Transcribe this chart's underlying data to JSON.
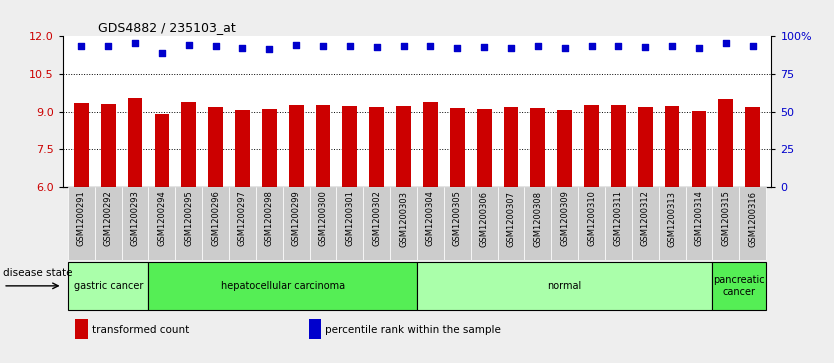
{
  "title": "GDS4882 / 235103_at",
  "samples": [
    "GSM1200291",
    "GSM1200292",
    "GSM1200293",
    "GSM1200294",
    "GSM1200295",
    "GSM1200296",
    "GSM1200297",
    "GSM1200298",
    "GSM1200299",
    "GSM1200300",
    "GSM1200301",
    "GSM1200302",
    "GSM1200303",
    "GSM1200304",
    "GSM1200305",
    "GSM1200306",
    "GSM1200307",
    "GSM1200308",
    "GSM1200309",
    "GSM1200310",
    "GSM1200311",
    "GSM1200312",
    "GSM1200313",
    "GSM1200314",
    "GSM1200315",
    "GSM1200316"
  ],
  "bar_values": [
    9.35,
    9.32,
    9.55,
    8.92,
    9.38,
    9.18,
    9.08,
    9.09,
    9.28,
    9.27,
    9.22,
    9.18,
    9.22,
    9.38,
    9.15,
    9.11,
    9.18,
    9.15,
    9.08,
    9.28,
    9.25,
    9.18,
    9.22,
    9.02,
    9.52,
    9.18
  ],
  "percentile_values": [
    11.62,
    11.62,
    11.72,
    11.35,
    11.65,
    11.6,
    11.52,
    11.5,
    11.65,
    11.62,
    11.6,
    11.58,
    11.62,
    11.6,
    11.52,
    11.58,
    11.52,
    11.6,
    11.52,
    11.6,
    11.6,
    11.58,
    11.6,
    11.52,
    11.72,
    11.6
  ],
  "bar_color": "#cc0000",
  "dot_color": "#0000cc",
  "ylim_left": [
    6,
    12
  ],
  "ylim_right": [
    0,
    100
  ],
  "yticks_left": [
    6,
    7.5,
    9,
    10.5,
    12
  ],
  "yticks_right": [
    0,
    25,
    50,
    75,
    100
  ],
  "ytick_labels_right": [
    "0",
    "25",
    "50",
    "75",
    "100%"
  ],
  "disease_groups": [
    {
      "label": "gastric cancer",
      "start": 0,
      "end": 2,
      "color": "#aaffaa"
    },
    {
      "label": "hepatocellular carcinoma",
      "start": 3,
      "end": 12,
      "color": "#55ee55"
    },
    {
      "label": "normal",
      "start": 13,
      "end": 23,
      "color": "#aaffaa"
    },
    {
      "label": "pancreatic\ncancer",
      "start": 24,
      "end": 25,
      "color": "#55ee55"
    }
  ],
  "fig_bg_color": "#eeeeee",
  "plot_bg_color": "#ffffff",
  "xtick_bg_color": "#cccccc",
  "grid_color": "#000000",
  "legend_items": [
    {
      "label": "transformed count",
      "color": "#cc0000"
    },
    {
      "label": "percentile rank within the sample",
      "color": "#0000cc"
    }
  ]
}
